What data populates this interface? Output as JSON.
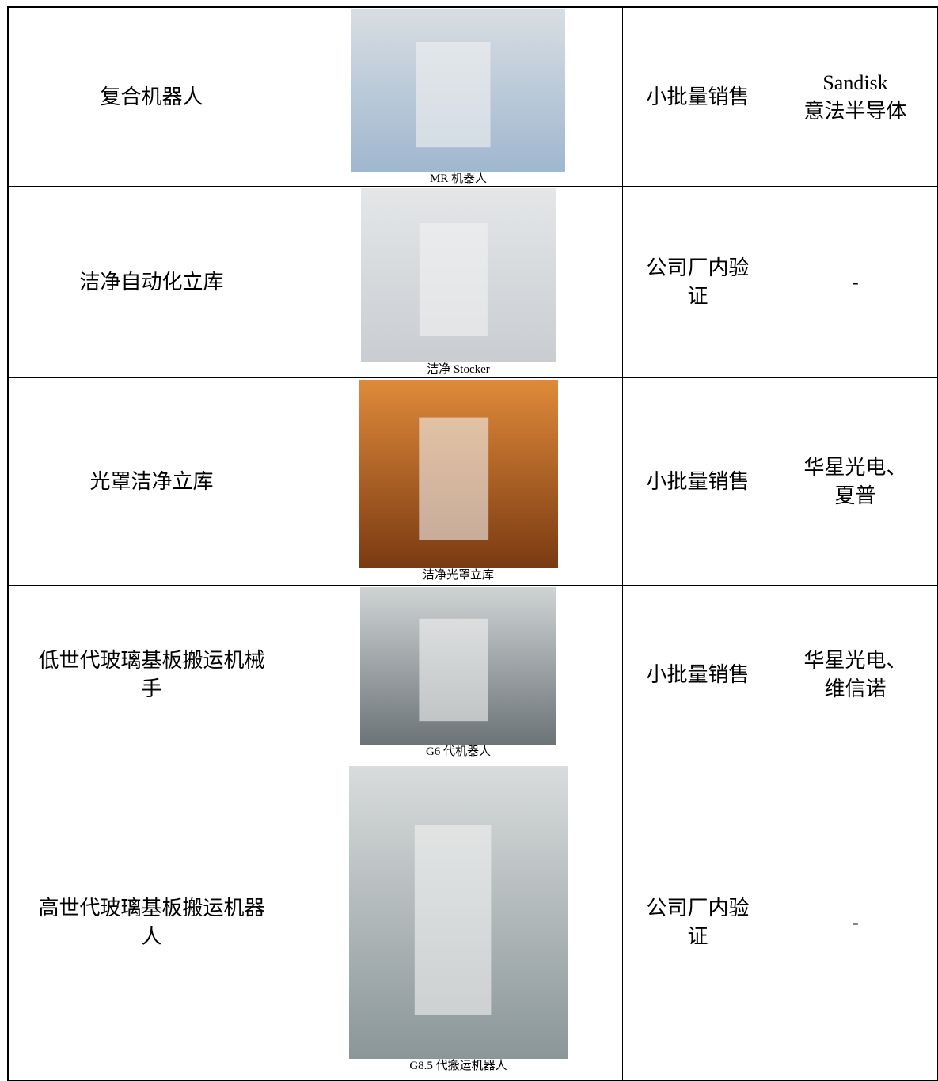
{
  "table": {
    "rows": [
      {
        "product": "复合机器人",
        "caption": "MR 机器人",
        "status": "小批量销售",
        "customers": [
          "Sandisk",
          "意法半导体"
        ]
      },
      {
        "product": "洁净自动化立库",
        "caption": "洁净 Stocker",
        "status": "公司厂内验证",
        "customers": [
          "-"
        ]
      },
      {
        "product": "光罩洁净立库",
        "caption": "洁净光罩立库",
        "status": "小批量销售",
        "customers": [
          "华星光电、",
          "夏普"
        ]
      },
      {
        "product": "低世代玻璃基板搬运机械手",
        "caption": "G6 代机器人",
        "status": "小批量销售",
        "customers": [
          "华星光电、",
          "维信诺"
        ]
      },
      {
        "product": "高世代玻璃基板搬运机器人",
        "caption": "G8.5 代搬运机器人",
        "status": "公司厂内验证",
        "customers": [
          "-"
        ]
      }
    ]
  }
}
